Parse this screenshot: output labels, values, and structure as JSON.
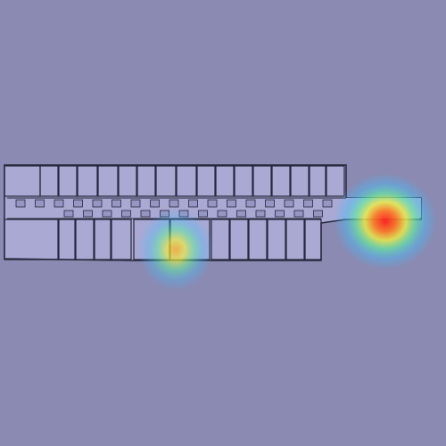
{
  "map": {
    "background_color": "#8a8ab2",
    "floor_color": "#a9a9d4",
    "wall_color": "#26263a",
    "hotspots": [
      {
        "name": "hotspot-corridor-east",
        "intensity": 1.0
      },
      {
        "name": "hotspot-room-center",
        "intensity": 0.85
      }
    ],
    "heat_palette": [
      "#ff2020",
      "#ffa020",
      "#f0f040",
      "#60f0a0",
      "#40c0ff"
    ]
  }
}
